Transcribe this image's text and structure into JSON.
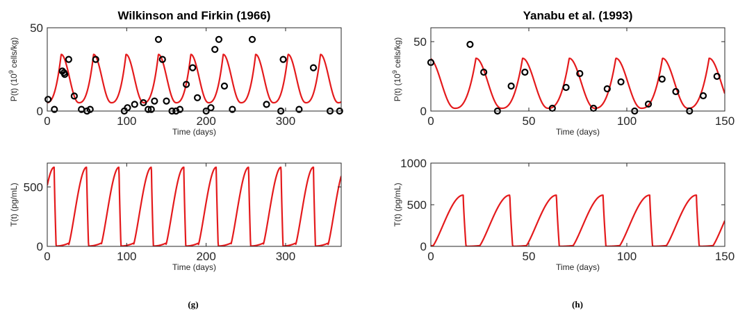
{
  "chart_data": [
    {
      "type": "line",
      "title": "Wilkinson and Firkin (1966)",
      "xlabel": "Time (days)",
      "ylabel_prefix": "P(t) (10",
      "ylabel_exp": "9",
      "ylabel_suffix": " cells/kg)",
      "xlim": [
        0,
        370
      ],
      "ylim": [
        0,
        50
      ],
      "xticks": [
        0,
        100,
        200,
        300
      ],
      "yticks": [
        0,
        50
      ],
      "series": [
        {
          "kind": "line",
          "color": "#e41a1c",
          "period": 40.8,
          "phase": 17.5,
          "min": 5,
          "max": 34,
          "x": [
            0,
            370
          ]
        },
        {
          "kind": "scatter",
          "color": "#000000",
          "x": [
            1,
            9,
            19,
            21,
            22,
            27,
            34,
            43,
            50,
            54,
            61,
            97,
            101,
            110,
            121,
            127,
            131,
            135,
            140,
            145,
            150,
            157,
            162,
            167,
            175,
            183,
            189,
            200,
            206,
            211,
            216,
            223,
            233,
            258,
            276,
            294,
            297,
            317,
            335,
            356,
            368
          ],
          "y": [
            7,
            1,
            24,
            23,
            22,
            31,
            9,
            1,
            0,
            1,
            31,
            0,
            2,
            4,
            5,
            1,
            1,
            6,
            43,
            31,
            6,
            0,
            0,
            1,
            16,
            26,
            8,
            0,
            2,
            37,
            43,
            15,
            1,
            43,
            4,
            0,
            31,
            1,
            26,
            0,
            0
          ]
        }
      ]
    },
    {
      "type": "line",
      "title": "Yanabu et al. (1993)",
      "xlabel": "Time (days)",
      "ylabel_prefix": "P(t) (10",
      "ylabel_exp": "9",
      "ylabel_suffix": " cells/kg)",
      "xlim": [
        0,
        150
      ],
      "ylim": [
        0,
        60
      ],
      "xticks": [
        0,
        50,
        100,
        150
      ],
      "yticks": [
        0,
        50
      ],
      "series": [
        {
          "kind": "line",
          "color": "#e41a1c",
          "period": 23.8,
          "phase": 23.0,
          "min": 2,
          "max": 38,
          "x": [
            0,
            150
          ]
        },
        {
          "kind": "scatter",
          "color": "#000000",
          "x": [
            0,
            20,
            27,
            34,
            41,
            48,
            62,
            69,
            76,
            83,
            90,
            97,
            104,
            111,
            118,
            125,
            132,
            139,
            146
          ],
          "y": [
            35,
            48,
            28,
            0,
            18,
            28,
            2,
            17,
            27,
            2,
            16,
            21,
            0,
            5,
            23,
            14,
            0,
            11,
            25
          ]
        }
      ]
    },
    {
      "type": "line",
      "title": "",
      "xlabel": "Time (days)",
      "ylabel_prefix": "T(t) (pg/mL)",
      "ylabel_exp": "",
      "ylabel_suffix": "",
      "xlim": [
        0,
        370
      ],
      "ylim": [
        0,
        700
      ],
      "xticks": [
        0,
        100,
        200,
        300
      ],
      "yticks": [
        0,
        500
      ],
      "series": [
        {
          "kind": "line",
          "color": "#e41a1c",
          "period": 40.8,
          "peak": 49.5,
          "baseline": 15,
          "max": 665,
          "rise": 0.55,
          "x": [
            0,
            370
          ]
        }
      ]
    },
    {
      "type": "line",
      "title": "",
      "xlabel": "Time (days)",
      "ylabel_prefix": "T(t) (pg/mL)",
      "ylabel_exp": "",
      "ylabel_suffix": "",
      "xlim": [
        0,
        150
      ],
      "ylim": [
        0,
        1000
      ],
      "xticks": [
        0,
        50,
        100,
        150
      ],
      "yticks": [
        0,
        500,
        1000
      ],
      "series": [
        {
          "kind": "line",
          "color": "#e41a1c",
          "period": 23.8,
          "peak": 16.5,
          "baseline": 5,
          "max": 615,
          "rise": 0.65,
          "x": [
            0,
            150
          ]
        }
      ]
    }
  ],
  "subfigure_labels": [
    "(g)",
    "(h)"
  ]
}
